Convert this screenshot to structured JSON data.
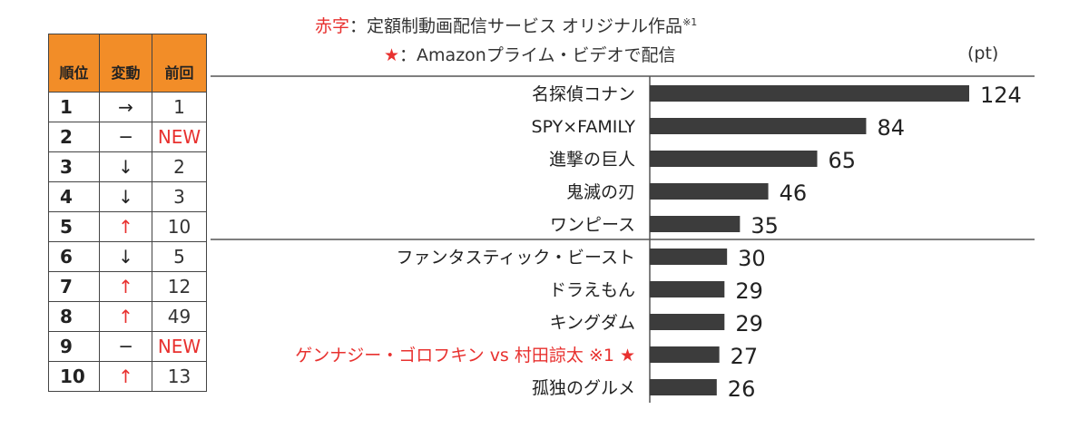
{
  "legend": {
    "line1_red": "赤字",
    "line1_rest": "：定額制動画配信サービス オリジナル作品",
    "line1_note": "※1",
    "line2_star": "★",
    "line2_rest": "：Amazonプライム・ビデオで配信"
  },
  "table": {
    "headers": {
      "rank": "順位",
      "move": "変動",
      "prev": "前回"
    },
    "rows": [
      {
        "rank": "1",
        "move": "→",
        "up": false,
        "prev": "1",
        "prev_new": false
      },
      {
        "rank": "2",
        "move": "─",
        "up": false,
        "prev": "NEW",
        "prev_new": true
      },
      {
        "rank": "3",
        "move": "↓",
        "up": false,
        "prev": "2",
        "prev_new": false
      },
      {
        "rank": "4",
        "move": "↓",
        "up": false,
        "prev": "3",
        "prev_new": false
      },
      {
        "rank": "5",
        "move": "↑",
        "up": true,
        "prev": "10",
        "prev_new": false
      },
      {
        "rank": "6",
        "move": "↓",
        "up": false,
        "prev": "5",
        "prev_new": false
      },
      {
        "rank": "7",
        "move": "↑",
        "up": true,
        "prev": "12",
        "prev_new": false
      },
      {
        "rank": "8",
        "move": "↑",
        "up": true,
        "prev": "49",
        "prev_new": false
      },
      {
        "rank": "9",
        "move": "─",
        "up": false,
        "prev": "NEW",
        "prev_new": true
      },
      {
        "rank": "10",
        "move": "↑",
        "up": true,
        "prev": "13",
        "prev_new": false
      }
    ]
  },
  "chart_data": {
    "type": "bar",
    "orientation": "horizontal",
    "title": "",
    "xlabel": "",
    "ylabel": "",
    "unit": "(pt)",
    "categories": [
      "名探偵コナン",
      "SPY×FAMILY",
      "進撃の巨人",
      "鬼滅の刃",
      "ワンピース",
      "ファンタスティック・ビースト",
      "ドラえもん",
      "キングダム",
      "ゲンナジー・ゴロフキン vs 村田諒太 ※1 ★",
      "孤独のグルメ"
    ],
    "highlight": [
      false,
      false,
      false,
      false,
      false,
      false,
      false,
      false,
      true,
      false
    ],
    "values": [
      124,
      84,
      65,
      46,
      35,
      30,
      29,
      29,
      27,
      26
    ],
    "xlim": [
      0,
      124
    ],
    "grid": false,
    "legend": "top-center",
    "colors": {
      "bar": "#3c3c3c",
      "highlight_text": "#e8312f",
      "text": "#222222",
      "separator": "#555555"
    }
  }
}
